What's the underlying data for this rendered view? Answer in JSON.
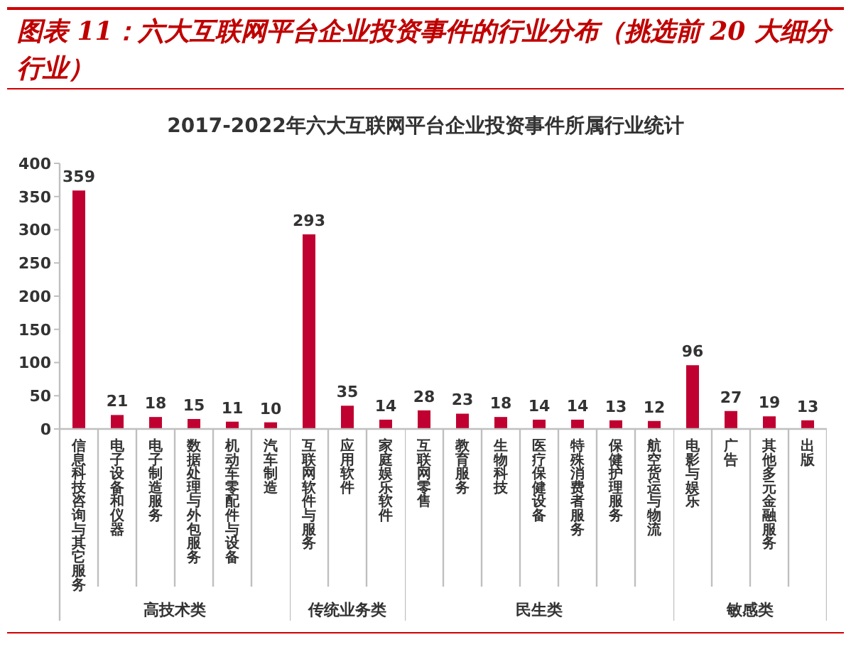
{
  "chart_data": [
    {
      "type": "bar",
      "title": "图表 11：六大互联网平台企业投资事件的行业分布（挑选前 20 大细分行业）",
      "subtitle": "2017-2022年六大互联网平台企业投资事件所属行业统计",
      "xlabel": "高技术类",
      "categories": [
        "信息科技咨询与其它服务",
        "电子设备和仪器",
        "电子制造服务",
        "数据处理与外包服务",
        "机动车零配件与设备",
        "汽车制造"
      ],
      "values": [
        359,
        21,
        18,
        15,
        11,
        10
      ],
      "color": "#c00030",
      "ylim": [
        0,
        400
      ],
      "yticks": [
        0,
        50,
        100,
        150,
        200,
        250,
        300,
        350,
        400
      ],
      "data_labels": true
    },
    {
      "type": "bar",
      "xlabel": "传统业务类",
      "categories": [
        "互联网软件与服务",
        "应用软件",
        "家庭娱乐软件"
      ],
      "values": [
        293,
        35,
        14
      ],
      "color": "#c00030",
      "ylim": [
        0,
        400
      ],
      "tick_labels": "x",
      "data_labels": true
    },
    {
      "type": "bar",
      "xlabel": "民生类",
      "categories": [
        "互联网零售",
        "教育服务",
        "生物科技",
        "医疗保健设备",
        "特殊消费者服务",
        "保健护理服务",
        "航空货运与物流"
      ],
      "values": [
        28,
        23,
        18,
        14,
        14,
        13,
        12
      ],
      "color": "#c00030",
      "ylim": [
        0,
        400
      ],
      "tick_labels": "x",
      "data_labels": true
    },
    {
      "type": "bar",
      "xlabel": "敏感类",
      "categories": [
        "电影与娱乐",
        "广告",
        "其他多元金融服务",
        "出版"
      ],
      "values": [
        96,
        27,
        19,
        13
      ],
      "color": "#c00030",
      "ylim": [
        0,
        400
      ],
      "tick_labels": "x",
      "data_labels": true
    }
  ]
}
